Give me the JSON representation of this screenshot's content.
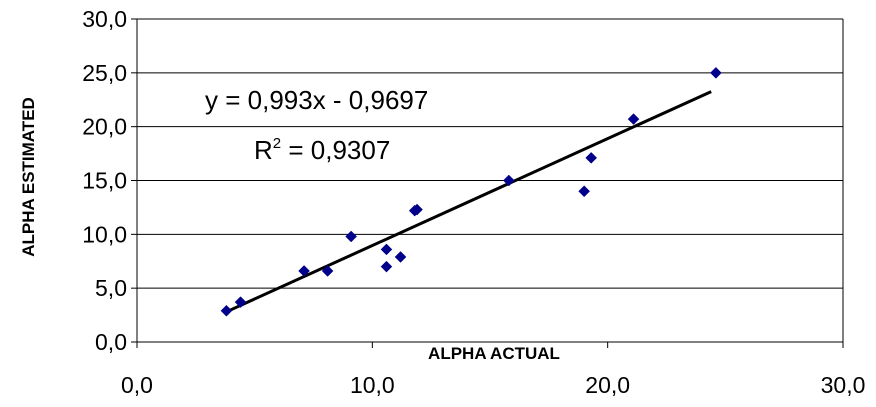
{
  "chart_data": {
    "type": "scatter",
    "xlabel": "ALPHA ACTUAL",
    "ylabel": "ALPHA ESTIMATED",
    "xlim": [
      0,
      30
    ],
    "ylim": [
      0,
      30
    ],
    "x_ticks": [
      "0,0",
      "10,0",
      "20,0",
      "30,0"
    ],
    "y_ticks": [
      "0,0",
      "5,0",
      "10,0",
      "15,0",
      "20,0",
      "25,0",
      "30,0"
    ],
    "grid": "horizontal",
    "marker_color": "#00008B",
    "series": [
      {
        "points": [
          {
            "x": 3.8,
            "y": 2.9
          },
          {
            "x": 4.4,
            "y": 3.7
          },
          {
            "x": 7.1,
            "y": 6.6
          },
          {
            "x": 8.1,
            "y": 6.6
          },
          {
            "x": 9.1,
            "y": 9.8
          },
          {
            "x": 10.6,
            "y": 8.6
          },
          {
            "x": 10.6,
            "y": 7.0
          },
          {
            "x": 11.2,
            "y": 7.9
          },
          {
            "x": 11.8,
            "y": 12.2
          },
          {
            "x": 11.9,
            "y": 12.3
          },
          {
            "x": 15.8,
            "y": 15.0
          },
          {
            "x": 19.0,
            "y": 14.0
          },
          {
            "x": 19.3,
            "y": 17.1
          },
          {
            "x": 21.1,
            "y": 20.7
          },
          {
            "x": 24.6,
            "y": 25.0
          }
        ]
      }
    ],
    "trendline": {
      "slope": 0.993,
      "intercept": -0.9697,
      "x_range": [
        3.8,
        24.4
      ],
      "color": "#000000"
    },
    "annotations": {
      "equation": "y = 0,993x - 0,9697",
      "r2_prefix": "R",
      "r2_sup": "2",
      "r2_value": " = 0,9307"
    }
  }
}
